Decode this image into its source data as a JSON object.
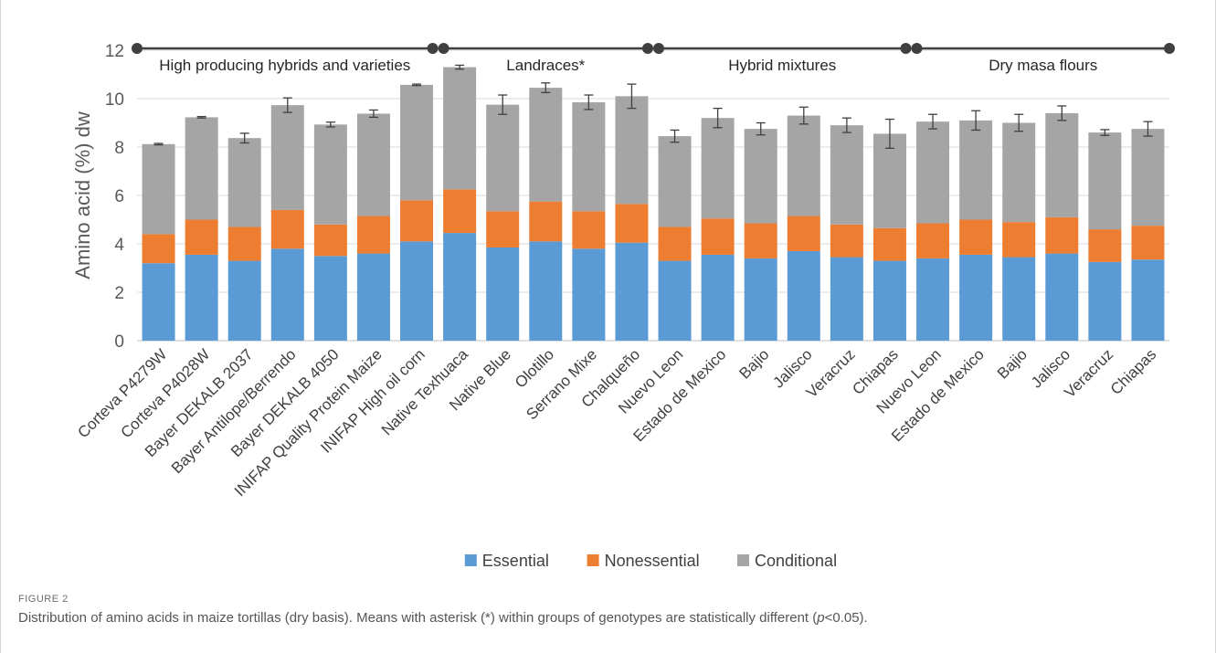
{
  "chart_data": {
    "type": "bar",
    "stacked": true,
    "ylabel": "Amino acid (%) dw",
    "ylim": [
      0,
      12
    ],
    "yticks": [
      0,
      2,
      4,
      6,
      8,
      10,
      12
    ],
    "grid": true,
    "legend_position": "bottom",
    "categories": [
      "Corteva P4279W",
      "Corteva P4028W",
      "Bayer DEKALB 2037",
      "Bayer Antilope/Berrendo",
      "Bayer DEKALB 4050",
      "INIFAP Quality Protein Maize",
      "INIFAP High oil corn",
      "Native Texhuaca",
      "Native Blue",
      "Olotillo",
      "Serrano Mixe",
      "Chalqueño",
      "Nuevo Leon",
      "Estado de Mexico",
      "Bajio",
      "Jalisco",
      "Veracruz",
      "Chiapas",
      "Nuevo Leon",
      "Estado de Mexico",
      "Bajio",
      "Jalisco",
      "Veracruz",
      "Chiapas"
    ],
    "series": [
      {
        "name": "Essential",
        "color": "#5b9bd5",
        "values": [
          3.2,
          3.55,
          3.3,
          3.8,
          3.5,
          3.6,
          4.1,
          4.45,
          3.85,
          4.1,
          3.8,
          4.05,
          3.3,
          3.55,
          3.4,
          3.7,
          3.45,
          3.3,
          3.4,
          3.55,
          3.45,
          3.6,
          3.25,
          3.35
        ]
      },
      {
        "name": "Nonessential",
        "color": "#ed7d31",
        "values": [
          1.2,
          1.45,
          1.4,
          1.6,
          1.3,
          1.55,
          1.7,
          1.8,
          1.5,
          1.65,
          1.55,
          1.6,
          1.4,
          1.5,
          1.45,
          1.45,
          1.35,
          1.35,
          1.45,
          1.45,
          1.45,
          1.5,
          1.35,
          1.4
        ]
      },
      {
        "name": "Conditional",
        "color": "#a5a5a5",
        "values": [
          3.72,
          4.23,
          3.67,
          4.33,
          4.13,
          4.23,
          4.77,
          5.05,
          4.4,
          4.7,
          4.5,
          4.45,
          3.75,
          4.15,
          3.9,
          4.15,
          4.1,
          3.9,
          4.2,
          4.1,
          4.1,
          4.3,
          4.0,
          4.0
        ]
      }
    ],
    "error_bars": [
      0.03,
      0.03,
      0.2,
      0.3,
      0.1,
      0.15,
      0.03,
      0.08,
      0.4,
      0.2,
      0.3,
      0.5,
      0.25,
      0.4,
      0.25,
      0.35,
      0.3,
      0.6,
      0.3,
      0.4,
      0.35,
      0.3,
      0.12,
      0.3
    ],
    "groups": [
      {
        "label": "High producing hybrids and varieties",
        "start": 0,
        "end": 6
      },
      {
        "label": "Landraces*",
        "start": 7,
        "end": 11
      },
      {
        "label": "Hybrid mixtures",
        "start": 12,
        "end": 17
      },
      {
        "label": "Dry masa flours",
        "start": 18,
        "end": 23
      }
    ]
  },
  "caption": {
    "label": "FIGURE 2",
    "text_before": "Distribution of amino acids in maize tortillas (dry basis). Means with asterisk (*) within groups of genotypes are statistically different (",
    "p_symbol": "p",
    "text_after": "<0.05)."
  }
}
